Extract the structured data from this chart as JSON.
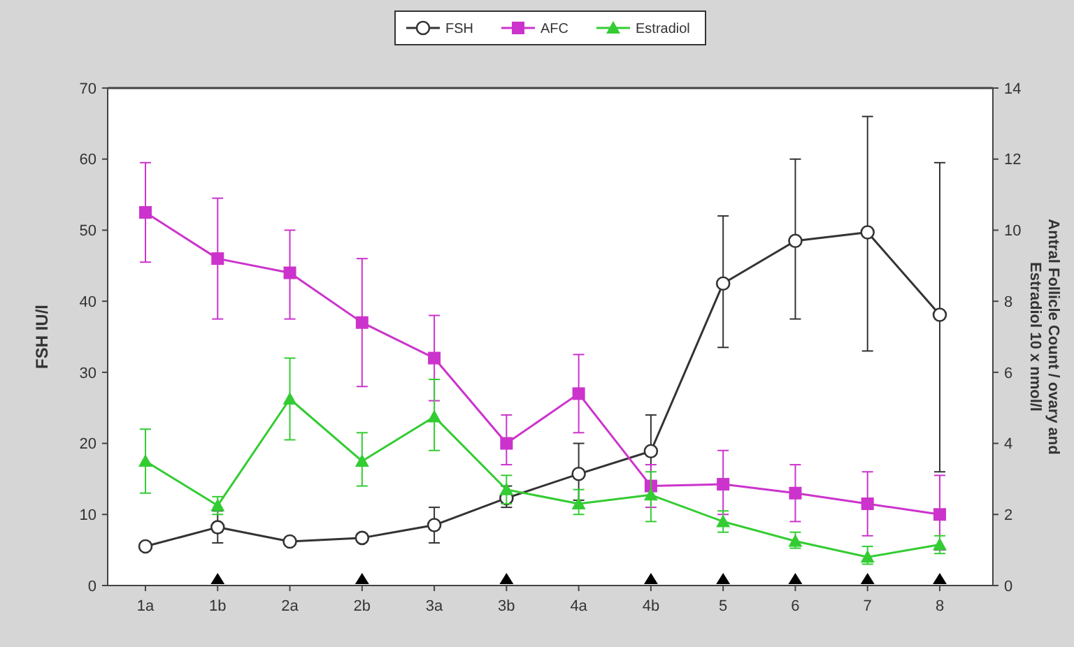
{
  "chart_data": {
    "type": "line",
    "ylabel": "FSH IU/l",
    "y2label": "Antral Follicle Count / ovary and Estradiol 10 x nmol/l",
    "categories": [
      "1a",
      "1b",
      "2a",
      "2b",
      "3a",
      "3b",
      "4a",
      "4b",
      "5",
      "6",
      "7",
      "8"
    ],
    "ylim": [
      0,
      70
    ],
    "yticks": [
      0,
      10,
      20,
      30,
      40,
      50,
      60,
      70
    ],
    "y2lim": [
      0,
      14
    ],
    "y2ticks": [
      0,
      2,
      4,
      6,
      8,
      10,
      12,
      14
    ],
    "legend": "top",
    "grid": false,
    "series": [
      {
        "name": "FSH",
        "color": "#333333",
        "marker": "circle",
        "values": [
          5.5,
          8.2,
          6.2,
          6.7,
          8.5,
          12.3,
          15.7,
          18.9,
          42.5,
          48.5,
          49.7,
          38.1
        ],
        "errors": [
          null,
          [
            6,
            10.5
          ],
          null,
          null,
          [
            6,
            11
          ],
          [
            11,
            14
          ],
          [
            12,
            20
          ],
          [
            14,
            24
          ],
          [
            33.5,
            52
          ],
          [
            37.5,
            60
          ],
          [
            33,
            66
          ],
          [
            16,
            59.5
          ]
        ]
      },
      {
        "name": "AFC",
        "color": "#cc33cc",
        "marker": "square",
        "axis": "y2",
        "values": [
          10.5,
          9.2,
          8.8,
          7.4,
          6.4,
          4.0,
          5.4,
          2.8,
          2.85,
          2.6,
          2.3,
          2.0
        ],
        "errors": [
          [
            9.1,
            11.9
          ],
          [
            7.5,
            10.9
          ],
          [
            7.5,
            10
          ],
          [
            5.6,
            9.2
          ],
          [
            5.2,
            7.6
          ],
          [
            3.4,
            4.8
          ],
          [
            4.3,
            6.5
          ],
          [
            2.2,
            3.4
          ],
          [
            2.0,
            3.8
          ],
          [
            1.8,
            3.4
          ],
          [
            1.4,
            3.2
          ],
          [
            1.0,
            3.1
          ]
        ]
      },
      {
        "name": "Estradiol",
        "color": "#33cc33",
        "marker": "triangle",
        "axis": "y2",
        "values": [
          3.5,
          2.25,
          5.25,
          3.5,
          4.75,
          2.7,
          2.3,
          2.55,
          1.8,
          1.25,
          0.8,
          1.15
        ],
        "errors": [
          [
            2.6,
            4.4
          ],
          [
            2.0,
            2.5
          ],
          [
            4.1,
            6.4
          ],
          [
            2.8,
            4.3
          ],
          [
            3.8,
            5.8
          ],
          [
            2.3,
            3.1
          ],
          [
            2.0,
            2.7
          ],
          [
            1.8,
            3.2
          ],
          [
            1.5,
            2.1
          ],
          [
            1.05,
            1.5
          ],
          [
            0.6,
            1.1
          ],
          [
            0.9,
            1.4
          ]
        ]
      }
    ]
  }
}
